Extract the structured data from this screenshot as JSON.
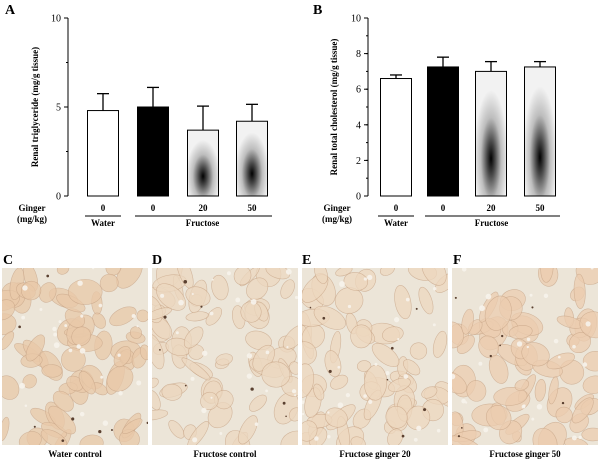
{
  "figure": {
    "panel_labels": [
      "A",
      "B",
      "C",
      "D",
      "E",
      "F"
    ],
    "ginger_label": "Ginger",
    "ginger_unit": "(mg/kg)",
    "doses": [
      "0",
      "0",
      "20",
      "50"
    ],
    "groups": [
      "Water",
      "Fructose"
    ],
    "micrographs": [
      {
        "caption": "Water control",
        "tint": "#e9c9a9"
      },
      {
        "caption": "Fructose  control",
        "tint": "#ecd8c0"
      },
      {
        "caption": "Fructose ginger 20",
        "tint": "#eed8bf"
      },
      {
        "caption": "Fructose ginger 50",
        "tint": "#eccdb0"
      }
    ]
  },
  "chart_data": [
    {
      "type": "bar",
      "panel": "A",
      "ylabel": "Renal triglyceride (mg/g tissue)",
      "ylim": [
        0,
        10
      ],
      "yticks": [
        "0",
        "5",
        "10"
      ],
      "categories": [
        "0",
        "0",
        "20",
        "50"
      ],
      "values": [
        4.8,
        5.0,
        3.7,
        4.2
      ],
      "errors": [
        0.95,
        1.1,
        1.35,
        0.95
      ],
      "bar_styles": [
        "white",
        "black",
        "gradient",
        "gradient"
      ]
    },
    {
      "type": "bar",
      "panel": "B",
      "ylabel": "Renal total cholesterol (mg/g tissue)",
      "ylim": [
        0,
        10
      ],
      "yticks": [
        "0",
        "2",
        "4",
        "6",
        "8",
        "10"
      ],
      "categories": [
        "0",
        "0",
        "20",
        "50"
      ],
      "values": [
        6.6,
        7.25,
        7.0,
        7.25
      ],
      "errors": [
        0.2,
        0.55,
        0.55,
        0.3
      ],
      "bar_styles": [
        "white",
        "black",
        "gradient",
        "gradient"
      ]
    }
  ]
}
